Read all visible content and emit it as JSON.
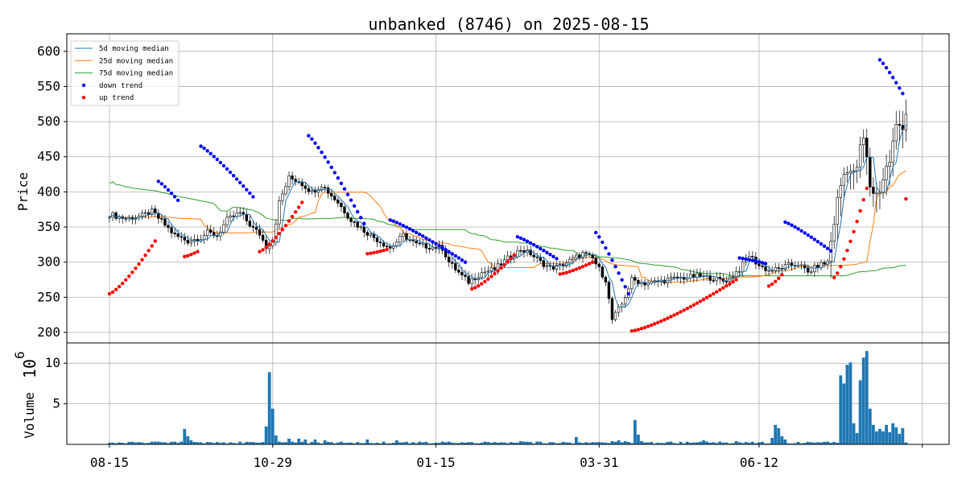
{
  "chart_data": [
    {
      "type": "candlestick",
      "title": "unbanked (8746) on 2025-08-15",
      "ylabel": "Price",
      "ylim": [
        185,
        625
      ],
      "yticks": [
        200,
        250,
        300,
        350,
        400,
        450,
        500,
        550,
        600
      ],
      "xticks": [
        {
          "label": "08-15",
          "index": 0
        },
        {
          "label": "10-29",
          "index": 50
        },
        {
          "label": "01-15",
          "index": 100
        },
        {
          "label": "03-31",
          "index": 150
        },
        {
          "label": "06-12",
          "index": 199
        }
      ],
      "n_days": 245,
      "grid": true,
      "legend_position": "upper-left",
      "legend": [
        {
          "label": " 5d moving median",
          "color": "#1f77b4",
          "kind": "line"
        },
        {
          "label": "25d moving median",
          "color": "#ff7f0e",
          "kind": "line"
        },
        {
          "label": "75d moving median",
          "color": "#2ca02c",
          "kind": "line"
        },
        {
          "label": "down trend",
          "color": "#0000ff",
          "kind": "dot"
        },
        {
          "label": "up trend",
          "color": "#ff0000",
          "kind": "dot"
        }
      ],
      "price_anchors": [
        [
          0,
          368
        ],
        [
          5,
          362
        ],
        [
          10,
          366
        ],
        [
          13,
          372
        ],
        [
          16,
          358
        ],
        [
          20,
          338
        ],
        [
          24,
          330
        ],
        [
          28,
          335
        ],
        [
          30,
          342
        ],
        [
          33,
          338
        ],
        [
          36,
          360
        ],
        [
          40,
          370
        ],
        [
          44,
          348
        ],
        [
          46,
          340
        ],
        [
          48,
          322
        ],
        [
          50,
          330
        ],
        [
          52,
          385
        ],
        [
          55,
          420
        ],
        [
          58,
          415
        ],
        [
          62,
          400
        ],
        [
          65,
          410
        ],
        [
          70,
          385
        ],
        [
          74,
          360
        ],
        [
          78,
          345
        ],
        [
          82,
          332
        ],
        [
          86,
          320
        ],
        [
          90,
          338
        ],
        [
          94,
          325
        ],
        [
          98,
          322
        ],
        [
          102,
          320
        ],
        [
          104,
          300
        ],
        [
          108,
          280
        ],
        [
          110,
          272
        ],
        [
          114,
          285
        ],
        [
          118,
          290
        ],
        [
          122,
          305
        ],
        [
          126,
          318
        ],
        [
          129,
          312
        ],
        [
          132,
          300
        ],
        [
          135,
          292
        ],
        [
          138,
          294
        ],
        [
          141,
          302
        ],
        [
          145,
          312
        ],
        [
          148,
          305
        ],
        [
          150,
          290
        ],
        [
          152,
          275
        ],
        [
          154,
          218
        ],
        [
          157,
          240
        ],
        [
          160,
          275
        ],
        [
          164,
          270
        ],
        [
          168,
          272
        ],
        [
          172,
          276
        ],
        [
          176,
          278
        ],
        [
          180,
          280
        ],
        [
          184,
          278
        ],
        [
          188,
          273
        ],
        [
          190,
          278
        ],
        [
          193,
          290
        ],
        [
          196,
          310
        ],
        [
          199,
          295
        ],
        [
          202,
          288
        ],
        [
          205,
          290
        ],
        [
          208,
          295
        ],
        [
          211,
          298
        ],
        [
          214,
          285
        ],
        [
          217,
          295
        ],
        [
          220,
          300
        ],
        [
          222,
          360
        ],
        [
          224,
          410
        ],
        [
          226,
          440
        ],
        [
          228,
          420
        ],
        [
          231,
          475
        ],
        [
          233,
          410
        ],
        [
          235,
          395
        ],
        [
          237,
          420
        ],
        [
          239,
          445
        ],
        [
          241,
          490
        ],
        [
          243,
          500
        ],
        [
          244,
          515
        ]
      ],
      "volume": {
        "ylabel": "Volume",
        "multiplier_exponent": 6,
        "ylim": [
          0,
          12.5
        ],
        "yticks": [
          5,
          10
        ],
        "bars": [
          [
            0,
            0.2
          ],
          [
            23,
            1.9
          ],
          [
            24,
            1.0
          ],
          [
            25,
            0.5
          ],
          [
            26,
            0.3
          ],
          [
            48,
            2.2
          ],
          [
            49,
            8.9
          ],
          [
            50,
            4.4
          ],
          [
            51,
            1.1
          ],
          [
            55,
            0.7
          ],
          [
            58,
            0.7
          ],
          [
            60,
            0.6
          ],
          [
            63,
            0.6
          ],
          [
            66,
            0.5
          ],
          [
            79,
            0.6
          ],
          [
            88,
            0.5
          ],
          [
            126,
            0.4
          ],
          [
            143,
            0.9
          ],
          [
            150,
            0.3
          ],
          [
            154,
            0.4
          ],
          [
            156,
            0.5
          ],
          [
            158,
            0.4
          ],
          [
            161,
            3.0
          ],
          [
            162,
            1.2
          ],
          [
            163,
            0.4
          ],
          [
            182,
            0.5
          ],
          [
            192,
            0.4
          ],
          [
            203,
            0.8
          ],
          [
            204,
            2.4
          ],
          [
            205,
            2.0
          ],
          [
            206,
            1.0
          ],
          [
            207,
            0.6
          ],
          [
            224,
            8.5
          ],
          [
            225,
            7.5
          ],
          [
            226,
            9.8
          ],
          [
            227,
            10.1
          ],
          [
            228,
            2.6
          ],
          [
            229,
            1.4
          ],
          [
            230,
            7.9
          ],
          [
            231,
            10.7
          ],
          [
            232,
            11.5
          ],
          [
            233,
            4.4
          ],
          [
            234,
            2.4
          ],
          [
            235,
            1.6
          ],
          [
            236,
            1.9
          ],
          [
            237,
            1.6
          ],
          [
            238,
            2.4
          ],
          [
            239,
            1.5
          ],
          [
            240,
            2.6
          ],
          [
            241,
            2.1
          ],
          [
            242,
            1.3
          ],
          [
            243,
            2.0
          ]
        ]
      }
    }
  ]
}
